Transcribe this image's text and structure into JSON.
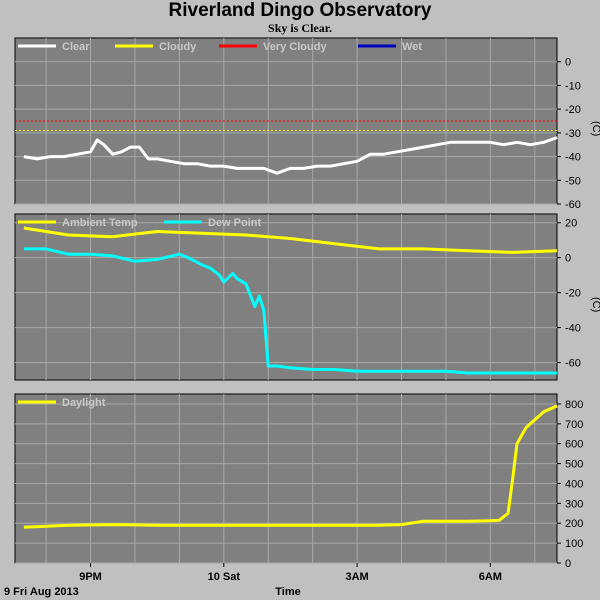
{
  "title": "Riverland Dingo Observatory",
  "subtitle": "Sky is Clear.",
  "date_label": "9 Fri Aug 2013",
  "time_label": "Time",
  "colors": {
    "background": "#c0c0c0",
    "plot_bg": "#808080",
    "grid": "#a8a8a8",
    "white": "#ffffff",
    "yellow": "#ffff00",
    "red": "#ff0000",
    "blue": "#0000c0",
    "cyan": "#00ffff"
  },
  "chart_data": [
    {
      "type": "line",
      "id": "sky",
      "ylabel": "(C)",
      "ylim": [
        -60,
        10
      ],
      "yticks": [
        0,
        -10,
        -20,
        -30,
        -40,
        -50,
        -60
      ],
      "grid": true,
      "legend": [
        {
          "name": "Clear",
          "color": "#ffffff"
        },
        {
          "name": "Cloudy",
          "color": "#ffff00"
        },
        {
          "name": "Very Cloudy",
          "color": "#ff0000"
        },
        {
          "name": "Wet",
          "color": "#0000c0"
        }
      ],
      "thresholds": [
        {
          "name": "Very Cloudy",
          "value": -25,
          "color": "#ff0000"
        },
        {
          "name": "Cloudy",
          "value": -29,
          "color": "#ffff00"
        }
      ],
      "series": [
        {
          "name": "Clear",
          "color": "#ffffff",
          "x": [
            -4.5,
            -4.2,
            -3.9,
            -3.6,
            -3.3,
            -3.0,
            -2.85,
            -2.7,
            -2.5,
            -2.3,
            -2.1,
            -1.9,
            -1.7,
            -1.5,
            -1.2,
            -0.9,
            -0.6,
            -0.3,
            0.0,
            0.3,
            0.6,
            0.9,
            1.2,
            1.5,
            1.8,
            2.1,
            2.4,
            2.7,
            3.0,
            3.3,
            3.6,
            3.9,
            4.2,
            4.5,
            4.8,
            5.1,
            5.4,
            5.7,
            6.0,
            6.3,
            6.6,
            6.9,
            7.2,
            7.5
          ],
          "values": [
            -40,
            -41,
            -40,
            -40,
            -39,
            -38,
            -33,
            -35,
            -39,
            -38,
            -36,
            -36,
            -41,
            -41,
            -42,
            -43,
            -43,
            -44,
            -44,
            -45,
            -45,
            -45,
            -47,
            -45,
            -45,
            -44,
            -44,
            -43,
            -42,
            -39,
            -39,
            -38,
            -37,
            -36,
            -35,
            -34,
            -34,
            -34,
            -34,
            -35,
            -34,
            -35,
            -34,
            -32
          ]
        }
      ]
    },
    {
      "type": "line",
      "id": "temp",
      "ylabel": "(C)",
      "ylim": [
        -70,
        25
      ],
      "yticks": [
        20,
        0,
        -20,
        -40,
        -60
      ],
      "grid": true,
      "legend": [
        {
          "name": "Ambient Temp",
          "color": "#ffff00"
        },
        {
          "name": "Dew Point",
          "color": "#00ffff"
        }
      ],
      "series": [
        {
          "name": "Ambient Temp",
          "color": "#ffff00",
          "x": [
            -4.5,
            -3.5,
            -2.5,
            -1.5,
            -0.5,
            0.5,
            1.5,
            2.5,
            3.5,
            4.5,
            5.5,
            6.5,
            7.5
          ],
          "values": [
            17,
            13,
            12,
            15,
            14,
            13,
            11,
            8,
            5,
            5,
            4,
            3,
            4
          ]
        },
        {
          "name": "Dew Point",
          "color": "#00ffff",
          "x": [
            -4.5,
            -4.0,
            -3.5,
            -3.0,
            -2.5,
            -2.0,
            -1.5,
            -1.0,
            -0.8,
            -0.5,
            -0.3,
            -0.1,
            0.0,
            0.2,
            0.3,
            0.5,
            0.7,
            0.8,
            0.9,
            1.0,
            1.2,
            1.5,
            2.0,
            2.5,
            3.0,
            3.5,
            4.0,
            4.5,
            5.0,
            5.5,
            6.0,
            6.5,
            7.0,
            7.5
          ],
          "values": [
            5,
            5,
            2,
            2,
            1,
            -2,
            -1,
            2,
            0,
            -4,
            -6,
            -10,
            -14,
            -9,
            -12,
            -15,
            -28,
            -22,
            -30,
            -62,
            -62,
            -63,
            -64,
            -64,
            -65,
            -65,
            -65,
            -65,
            -65,
            -66,
            -66,
            -66,
            -66,
            -66
          ]
        }
      ]
    },
    {
      "type": "line",
      "id": "daylight",
      "ylabel": "",
      "ylim": [
        0,
        850
      ],
      "yticks": [
        800,
        700,
        600,
        500,
        400,
        300,
        200,
        100,
        0
      ],
      "grid": true,
      "legend": [
        {
          "name": "Daylight",
          "color": "#ffff00"
        }
      ],
      "series": [
        {
          "name": "Daylight",
          "color": "#ffff00",
          "x": [
            -4.5,
            -3.5,
            -2.5,
            -1.5,
            -0.5,
            0.5,
            1.5,
            2.5,
            3.0,
            3.5,
            4.0,
            4.5,
            5.0,
            5.5,
            6.0,
            6.2,
            6.4,
            6.5,
            6.6,
            6.8,
            7.0,
            7.2,
            7.5
          ],
          "values": [
            180,
            190,
            193,
            190,
            190,
            190,
            190,
            190,
            190,
            190,
            193,
            210,
            210,
            210,
            212,
            215,
            250,
            420,
            600,
            680,
            720,
            760,
            790
          ]
        }
      ]
    }
  ],
  "x_axis": {
    "range": [
      -4.7,
      7.5
    ],
    "ticks": [
      {
        "value": -3,
        "label": "9PM"
      },
      {
        "value": 0,
        "label": "10 Sat"
      },
      {
        "value": 3,
        "label": "3AM"
      },
      {
        "value": 6,
        "label": "6AM"
      }
    ]
  }
}
